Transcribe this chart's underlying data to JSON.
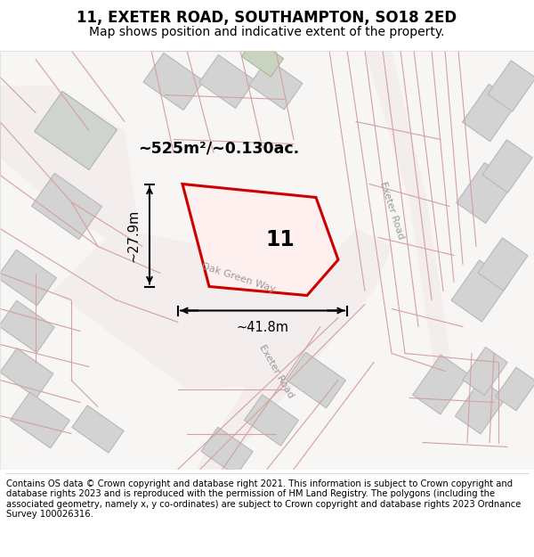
{
  "title": "11, EXETER ROAD, SOUTHAMPTON, SO18 2ED",
  "subtitle": "Map shows position and indicative extent of the property.",
  "footer": "Contains OS data © Crown copyright and database right 2021. This information is subject to Crown copyright and database rights 2023 and is reproduced with the permission of HM Land Registry. The polygons (including the associated geometry, namely x, y co-ordinates) are subject to Crown copyright and database rights 2023 Ordnance Survey 100026316.",
  "property_label": "11",
  "area_label": "~525m²/~0.130ac.",
  "width_label": "~41.8m",
  "height_label": "~27.9m",
  "road_label_exeter_right": "Exeter Road",
  "road_label_oak": "Oak Green Way",
  "road_label_exeter_lower": "Exeter Road",
  "title_fontsize": 12,
  "subtitle_fontsize": 10,
  "footer_fontsize": 7.2
}
